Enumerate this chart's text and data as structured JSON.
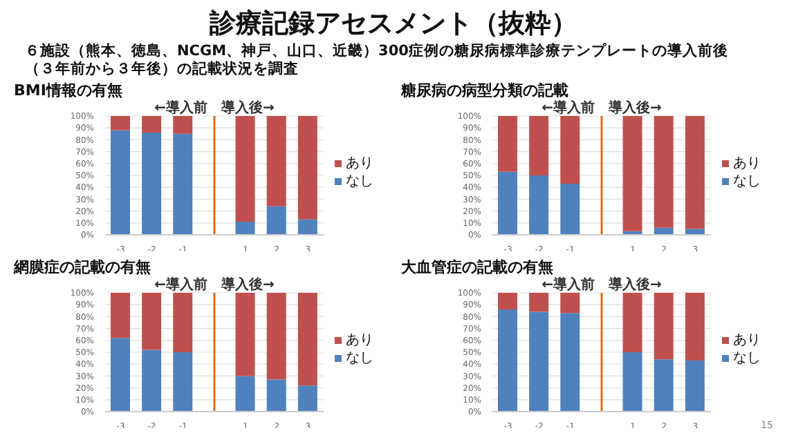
{
  "chart_data": [
    {
      "type": "bar",
      "title": "BMI情報の有無",
      "stacked": true,
      "x": [
        -3,
        -2,
        -1,
        1,
        2,
        3
      ],
      "xlim": [
        -3.5,
        3.5
      ],
      "xticks": [
        -3,
        -2,
        -1,
        1,
        2,
        3
      ],
      "series": [
        {
          "name": "なし",
          "color": "#4f81bd",
          "values": [
            88,
            86,
            85,
            11,
            24,
            13
          ]
        },
        {
          "name": "あり",
          "color": "#c0504d",
          "values": [
            12,
            14,
            15,
            89,
            76,
            87
          ]
        }
      ],
      "ylim": [
        0,
        100
      ],
      "yticks": [
        {
          "value": 0,
          "label": "0%"
        },
        {
          "value": 10,
          "label": "10%"
        },
        {
          "value": 20,
          "label": "20%"
        },
        {
          "value": 30,
          "label": "30%"
        },
        {
          "value": 40,
          "label": "40%"
        },
        {
          "value": 50,
          "label": "50%"
        },
        {
          "value": 60,
          "label": "60%"
        },
        {
          "value": 70,
          "label": "70%"
        },
        {
          "value": 80,
          "label": "80%"
        },
        {
          "value": 90,
          "label": "90%"
        },
        {
          "value": 100,
          "label": "100%"
        }
      ],
      "grid": "y",
      "legend": "right",
      "ref_lines": [
        {
          "axis": "x",
          "value": 0,
          "color": "#e46c0a"
        }
      ],
      "annotations": [
        "←導入前",
        "導入後→",
        "診療記録アセスメント（抜粋）",
        "６施設（熊本、徳島、NCGM、神戸、山口、近畿）300症例の糖尿病標準診療テンプレートの導入前後（３年前から３年後）の記載状況を調査"
      ]
    },
    {
      "type": "bar",
      "title": "糖尿病の病型分類の記載",
      "stacked": true,
      "x": [
        -3,
        -2,
        -1,
        1,
        2,
        3
      ],
      "xlim": [
        -3.5,
        3.5
      ],
      "xticks": [
        -3,
        -2,
        -1,
        1,
        2,
        3
      ],
      "series": [
        {
          "name": "なし",
          "color": "#4f81bd",
          "values": [
            53,
            50,
            43,
            3,
            6,
            5
          ]
        },
        {
          "name": "あり",
          "color": "#c0504d",
          "values": [
            47,
            50,
            57,
            97,
            94,
            95
          ]
        }
      ],
      "ylim": [
        0,
        100
      ],
      "yticks": [
        {
          "value": 0,
          "label": "0%"
        },
        {
          "value": 10,
          "label": "10%"
        },
        {
          "value": 20,
          "label": "20%"
        },
        {
          "value": 30,
          "label": "30%"
        },
        {
          "value": 40,
          "label": "40%"
        },
        {
          "value": 50,
          "label": "50%"
        },
        {
          "value": 60,
          "label": "60%"
        },
        {
          "value": 70,
          "label": "70%"
        },
        {
          "value": 80,
          "label": "80%"
        },
        {
          "value": 90,
          "label": "90%"
        },
        {
          "value": 100,
          "label": "100%"
        }
      ],
      "grid": "y",
      "legend": "right",
      "ref_lines": [
        {
          "axis": "x",
          "value": 0,
          "color": "#e46c0a"
        }
      ],
      "annotations": [
        "←導入前",
        "導入後→"
      ]
    },
    {
      "type": "bar",
      "title": "網膜症の記載の有無",
      "stacked": true,
      "x": [
        -3,
        -2,
        -1,
        1,
        2,
        3
      ],
      "xlim": [
        -3.5,
        3.5
      ],
      "xticks": [
        -3,
        -2,
        -1,
        1,
        2,
        3
      ],
      "series": [
        {
          "name": "なし",
          "color": "#4f81bd",
          "values": [
            62,
            52,
            50,
            30,
            27,
            22
          ]
        },
        {
          "name": "あり",
          "color": "#c0504d",
          "values": [
            38,
            48,
            50,
            70,
            73,
            78
          ]
        }
      ],
      "ylim": [
        0,
        100
      ],
      "yticks": [
        {
          "value": 0,
          "label": "0%"
        },
        {
          "value": 10,
          "label": "10%"
        },
        {
          "value": 20,
          "label": "20%"
        },
        {
          "value": 30,
          "label": "30%"
        },
        {
          "value": 40,
          "label": "40%"
        },
        {
          "value": 50,
          "label": "50%"
        },
        {
          "value": 60,
          "label": "60%"
        },
        {
          "value": 70,
          "label": "70%"
        },
        {
          "value": 80,
          "label": "80%"
        },
        {
          "value": 90,
          "label": "90%"
        },
        {
          "value": 100,
          "label": "100%"
        }
      ],
      "grid": "y",
      "legend": "right",
      "ref_lines": [
        {
          "axis": "x",
          "value": 0,
          "color": "#e46c0a"
        }
      ],
      "annotations": [
        "←導入前",
        "導入後→"
      ]
    },
    {
      "type": "bar",
      "title": "大血管症の記載の有無",
      "stacked": true,
      "x": [
        -3,
        -2,
        -1,
        1,
        2,
        3
      ],
      "xlim": [
        -3.5,
        3.5
      ],
      "xticks": [
        -3,
        -2,
        -1,
        1,
        2,
        3
      ],
      "series": [
        {
          "name": "なし",
          "color": "#4f81bd",
          "values": [
            86,
            84,
            83,
            50,
            44,
            43
          ]
        },
        {
          "name": "あり",
          "color": "#c0504d",
          "values": [
            14,
            16,
            17,
            50,
            56,
            57
          ]
        }
      ],
      "ylim": [
        0,
        100
      ],
      "yticks": [
        {
          "value": 0,
          "label": "0%"
        },
        {
          "value": 10,
          "label": "10%"
        },
        {
          "value": 20,
          "label": "20%"
        },
        {
          "value": 30,
          "label": "30%"
        },
        {
          "value": 40,
          "label": "40%"
        },
        {
          "value": 50,
          "label": "50%"
        },
        {
          "value": 60,
          "label": "60%"
        },
        {
          "value": 70,
          "label": "70%"
        },
        {
          "value": 80,
          "label": "80%"
        },
        {
          "value": 90,
          "label": "90%"
        },
        {
          "value": 100,
          "label": "100%"
        }
      ],
      "grid": "y",
      "legend": "right",
      "ref_lines": [
        {
          "axis": "x",
          "value": 0,
          "color": "#e46c0a"
        }
      ],
      "annotations": [
        "←導入前",
        "導入後→",
        "15"
      ]
    }
  ]
}
